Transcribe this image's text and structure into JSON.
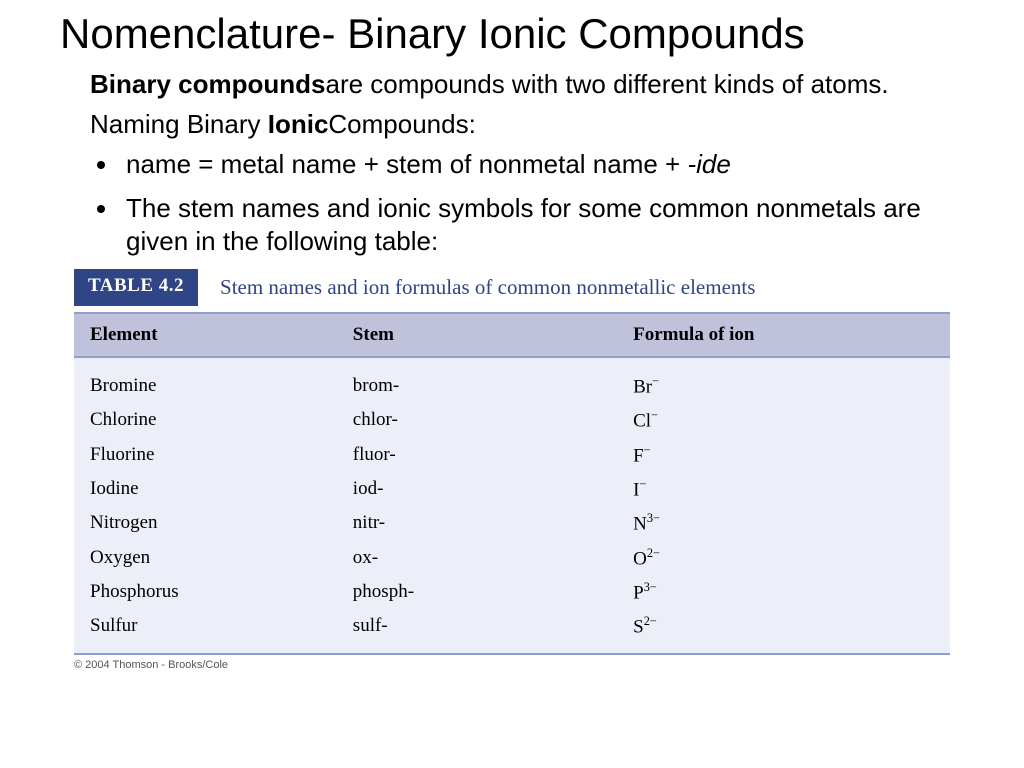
{
  "title": "Nomenclature- Binary Ionic Compounds",
  "definition": {
    "term": "Binary compounds",
    "rest": "are compounds with two different kinds of atoms."
  },
  "subhead": {
    "pre": "Naming Binary ",
    "bold": "Ionic",
    "post": "Compounds:"
  },
  "bullets": [
    {
      "pre": "name = metal name + stem of nonmetal name + ",
      "italic": "-ide",
      "post": ""
    },
    {
      "pre": "The stem names and ionic symbols for some common nonmetals are given in the following table:",
      "italic": "",
      "post": ""
    }
  ],
  "table": {
    "badge": "TABLE 4.2",
    "caption": "Stem names and ion formulas of common nonmetallic elements",
    "columns": [
      "Element",
      "Stem",
      "Formula of ion"
    ],
    "rows": [
      {
        "element": "Bromine",
        "stem": "brom-",
        "symbol": "Br",
        "charge": "−"
      },
      {
        "element": "Chlorine",
        "stem": "chlor-",
        "symbol": "Cl",
        "charge": "−"
      },
      {
        "element": "Fluorine",
        "stem": "fluor-",
        "symbol": "F",
        "charge": "−"
      },
      {
        "element": "Iodine",
        "stem": "iod-",
        "symbol": "I",
        "charge": "−"
      },
      {
        "element": "Nitrogen",
        "stem": "nitr-",
        "symbol": "N",
        "charge": "3−"
      },
      {
        "element": "Oxygen",
        "stem": "ox-",
        "symbol": "O",
        "charge": "2−"
      },
      {
        "element": "Phosphorus",
        "stem": "phosph-",
        "symbol": "P",
        "charge": "3−"
      },
      {
        "element": "Sulfur",
        "stem": "sulf-",
        "symbol": "S",
        "charge": "2−"
      }
    ],
    "colors": {
      "badge_bg": "#2f4585",
      "badge_text": "#ffffff",
      "caption_text": "#2f4585",
      "header_bg": "#c0c2db",
      "body_bg": "#eceef8",
      "border": "#90a0c8"
    }
  },
  "copyright": "© 2004 Thomson - Brooks/Cole"
}
